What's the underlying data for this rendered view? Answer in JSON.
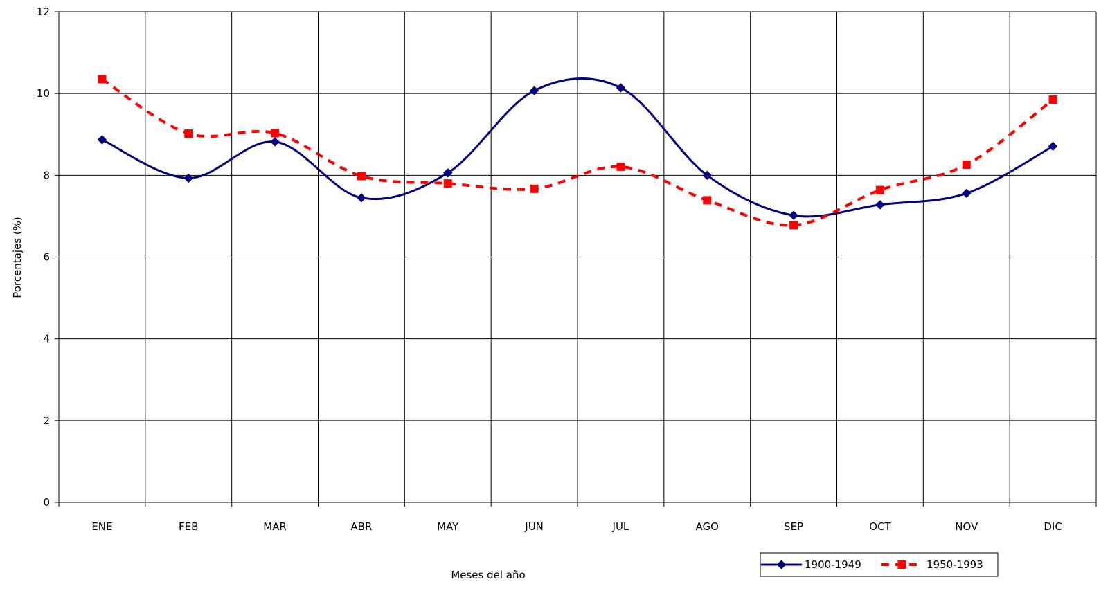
{
  "chart_data": {
    "type": "line",
    "title": "",
    "xlabel": "Meses del año",
    "ylabel": "Porcentajes (%)",
    "categories": [
      "ENE",
      "FEB",
      "MAR",
      "ABR",
      "MAY",
      "JUN",
      "JUL",
      "AGO",
      "SEP",
      "OCT",
      "NOV",
      "DIC"
    ],
    "ylim": [
      0,
      12
    ],
    "yticks": [
      0,
      2,
      4,
      6,
      8,
      10,
      12
    ],
    "grid": "both",
    "legend_position": "bottom-right",
    "series": [
      {
        "name": "1900-1949",
        "color": "#000080",
        "line_style": "solid",
        "marker": "diamond",
        "values": [
          8.87,
          7.93,
          8.82,
          7.45,
          8.06,
          10.07,
          10.14,
          8.0,
          7.02,
          7.28,
          7.56,
          8.71
        ]
      },
      {
        "name": "1950-1993",
        "color": "#ff0000",
        "line_style": "dashed",
        "marker": "square",
        "values": [
          10.35,
          9.02,
          9.03,
          7.98,
          7.8,
          7.67,
          8.21,
          7.39,
          6.78,
          7.64,
          8.26,
          9.85
        ]
      }
    ]
  }
}
